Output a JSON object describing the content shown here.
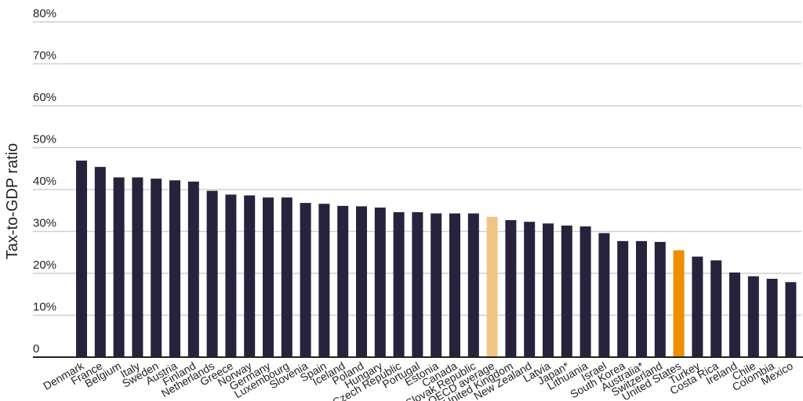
{
  "chart_data": {
    "type": "bar",
    "title": "",
    "xlabel": "",
    "ylabel": "Tax-to-GDP ratio",
    "ylim": [
      0,
      80
    ],
    "yticks": [
      "0",
      "10%",
      "20%",
      "30%",
      "40%",
      "50%",
      "60%",
      "70%",
      "80%"
    ],
    "grid": true,
    "legend": "none",
    "categories": [
      "Denmark",
      "France",
      "Belgium",
      "Italy",
      "Sweden",
      "Austria",
      "Finland",
      "Netherlands",
      "Greece",
      "Norway",
      "Germany",
      "Luxembourg",
      "Slovenia",
      "Spain",
      "Iceland",
      "Poland",
      "Hungary",
      "Czech Republic",
      "Portugal",
      "Estonia",
      "Canada",
      "Slovak Republic",
      "OECD average",
      "United Kingdom",
      "New Zealand",
      "Latvia",
      "Japan*",
      "Lithuania",
      "Israel",
      "South Korea",
      "Australia*",
      "Switzerland",
      "United States",
      "Turkey",
      "Costa Rica",
      "Ireland",
      "Chile",
      "Colombia",
      "Mexico"
    ],
    "values": [
      46.9,
      45.4,
      42.9,
      42.9,
      42.6,
      42.2,
      41.9,
      39.7,
      38.8,
      38.6,
      38.1,
      38.1,
      36.8,
      36.6,
      36.1,
      36.0,
      35.7,
      34.6,
      34.6,
      34.3,
      34.3,
      34.3,
      33.5,
      32.7,
      32.3,
      31.9,
      31.4,
      31.2,
      29.6,
      27.7,
      27.7,
      27.5,
      25.5,
      24.0,
      23.1,
      20.2,
      19.3,
      18.7,
      17.9
    ],
    "colors": {
      "default": "#27233c",
      "OECD average": "#f2c586",
      "United States": "#ec8f00"
    }
  }
}
